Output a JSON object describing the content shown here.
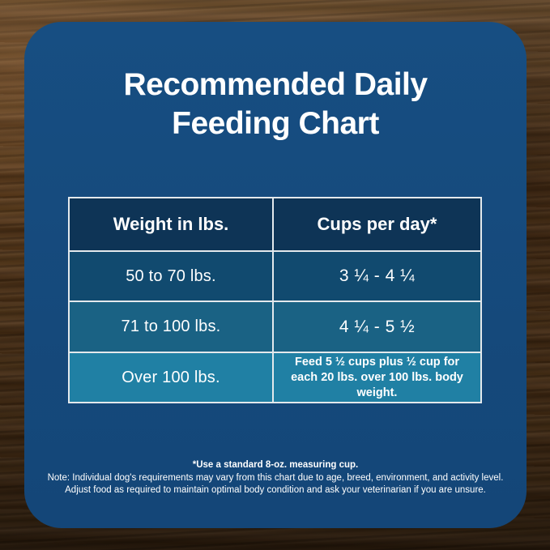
{
  "card": {
    "title_lines": [
      "Recommended Daily",
      "Feeding Chart"
    ]
  },
  "chart_data": {
    "type": "table",
    "title": "Recommended Daily Feeding Chart",
    "columns": [
      "Weight in lbs.",
      "Cups per day*"
    ],
    "rows": [
      [
        "50 to 70 lbs.",
        "3 ¼ - 4 ¼"
      ],
      [
        "71 to 100 lbs.",
        "4 ¼ - 5 ½"
      ],
      [
        "Over 100 lbs.",
        "Feed 5 ½ cups plus ½ cup for each 20 lbs. over 100 lbs. body weight."
      ]
    ],
    "footnotes": [
      "*Use a standard 8-oz. measuring cup.",
      "Note: Individual dog's requirements may vary from this chart due to age, breed, environment, and activity level.",
      "Adjust food as required to maintain optimal body condition and ask your veterinarian if you are unsure."
    ]
  },
  "notes": {
    "measuring_cup": "*Use a standard 8-oz. measuring cup.",
    "variance": "Note: Individual dog's requirements may vary from this chart due to age, breed, environment, and activity level.",
    "adjust": "Adjust food as required to maintain optimal body condition and ask your veterinarian if you are unsure."
  },
  "colors": {
    "panel_bg": "#15497b",
    "header_row_bg": "#0e3456",
    "row1_bg": "#114a6f",
    "row2_bg": "#1a6284",
    "row3_bg": "#2080a4",
    "table_border": "#e3e9ec",
    "text": "#ffffff",
    "wood_brown": "#55391f"
  }
}
